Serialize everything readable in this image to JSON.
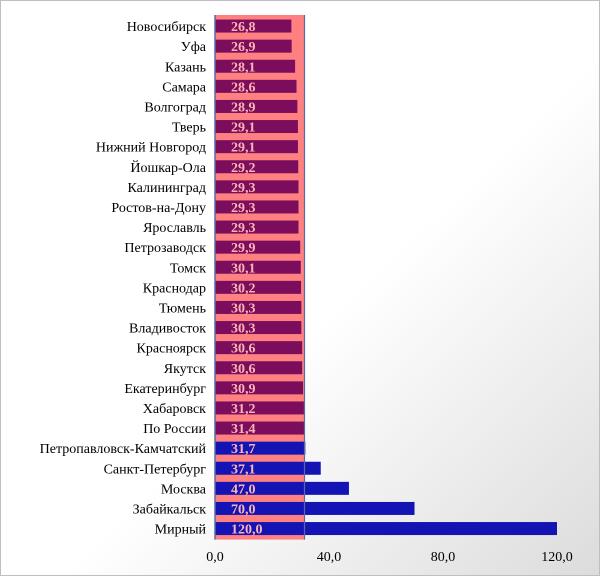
{
  "chart_data": {
    "type": "bar",
    "orientation": "horizontal",
    "title": "",
    "xlabel": "",
    "ylabel": "",
    "xlim": [
      0,
      120
    ],
    "x_ticks": [
      "0,0",
      "40,0",
      "80,0",
      "120,0"
    ],
    "x_tick_values": [
      0,
      40,
      80,
      120
    ],
    "grid": false,
    "reference_threshold": 31.4,
    "colors": {
      "bar_below_threshold": "#7b0d5c",
      "bar_above_threshold": "#1414b4",
      "highlight_band": "#ff8080",
      "label_text": "#ffb3b3"
    },
    "categories": [
      "Новосибирск",
      "Уфа",
      "Казань",
      "Самара",
      "Волгоград",
      "Тверь",
      "Нижний Новгород",
      "Йошкар-Ола",
      "Калининград",
      "Ростов-на-Дону",
      "Ярославль",
      "Петрозаводск",
      "Томск",
      "Краснодар",
      "Тюмень",
      "Владивосток",
      "Красноярск",
      "Якутск",
      "Екатеринбург",
      "Хабаровск",
      "По России",
      "Петропавловск-Камчатский",
      "Санкт-Петербург",
      "Москва",
      "Забайкальск",
      "Мирный"
    ],
    "values": [
      26.8,
      26.9,
      28.1,
      28.6,
      28.9,
      29.1,
      29.1,
      29.2,
      29.3,
      29.3,
      29.3,
      29.9,
      30.1,
      30.2,
      30.3,
      30.3,
      30.6,
      30.6,
      30.9,
      31.2,
      31.4,
      31.7,
      37.1,
      47.0,
      70.0,
      120.0
    ],
    "value_labels": [
      "26,8",
      "26,9",
      "28,1",
      "28,6",
      "28,9",
      "29,1",
      "29,1",
      "29,2",
      "29,3",
      "29,3",
      "29,3",
      "29,9",
      "30,1",
      "30,2",
      "30,3",
      "30,3",
      "30,6",
      "30,6",
      "30,9",
      "31,2",
      "31,4",
      "31,7",
      "37,1",
      "47,0",
      "70,0",
      "120,0"
    ]
  }
}
